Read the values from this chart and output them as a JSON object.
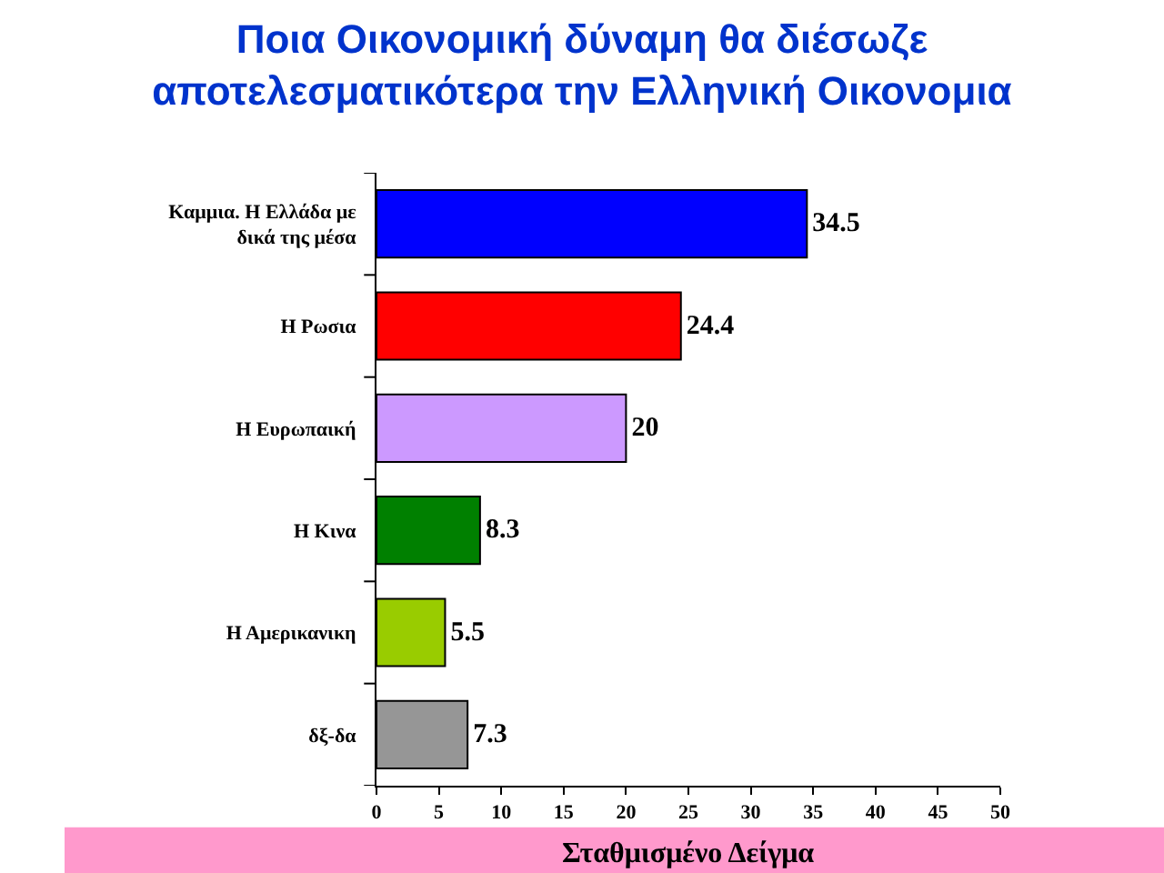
{
  "chart_data": {
    "type": "bar",
    "orientation": "horizontal",
    "title": "Ποια Οικονομική δύναμη θα διέσωζε αποτελεσματικότερα την Ελληνική Οικονομια",
    "categories": [
      "Καμμια. Η Ελλάδα με δικά της μέσα",
      "Η Ρωσια",
      "Η Ευρωπαική",
      "Η Κινα",
      "Η Αμερικανικη",
      "δξ-δα"
    ],
    "values": [
      34.5,
      24.4,
      20,
      8.3,
      5.5,
      7.3
    ],
    "colors": [
      "#0000ff",
      "#ff0000",
      "#cc99ff",
      "#008000",
      "#99cc00",
      "#969696"
    ],
    "xlim": [
      0,
      50
    ],
    "xticks": [
      0,
      5,
      10,
      15,
      20,
      25,
      30,
      35,
      40,
      45,
      50
    ],
    "grid": false,
    "data_labels": true,
    "annotations": [
      "Σταθμισμένο Δείγμα"
    ]
  }
}
